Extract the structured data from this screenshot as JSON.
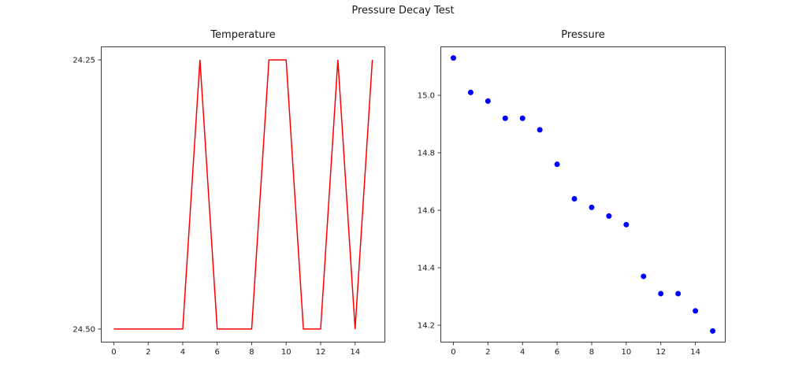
{
  "figure": {
    "title": "Pressure Decay Test",
    "background": "#ffffff",
    "text_color": "#1a1a1a",
    "axis_color": "#3c3c3c"
  },
  "chart_data": [
    {
      "type": "line",
      "title": "Temperature",
      "line_color": "#ff0000",
      "x": [
        0,
        1,
        2,
        3,
        4,
        5,
        6,
        7,
        8,
        9,
        10,
        11,
        12,
        13,
        14,
        15
      ],
      "y": [
        "24.50",
        "24.50",
        "24.50",
        "24.50",
        "24.50",
        "24.25",
        "24.50",
        "24.50",
        "24.50",
        "24.25",
        "24.25",
        "24.50",
        "24.50",
        "24.25",
        "24.50",
        "24.25"
      ],
      "y_categorical": true,
      "y_categories_bottom_to_top": [
        "24.50",
        "24.25"
      ],
      "xlim": [
        -0.75,
        15.75
      ],
      "ylim": [
        -0.05,
        1.05
      ],
      "xticks": [
        0,
        2,
        4,
        6,
        8,
        10,
        12,
        14
      ],
      "yticks": [
        {
          "pos": 1,
          "label": "24.25"
        },
        {
          "pos": 0,
          "label": "24.50"
        }
      ],
      "xlabel": "",
      "ylabel": "",
      "grid": false,
      "legend": null
    },
    {
      "type": "scatter",
      "title": "Pressure",
      "marker_color": "#0000ff",
      "x": [
        0,
        1,
        2,
        3,
        4,
        5,
        6,
        7,
        8,
        9,
        10,
        11,
        12,
        13,
        14,
        15
      ],
      "y": [
        15.13,
        15.01,
        14.98,
        14.92,
        14.92,
        14.88,
        14.76,
        14.64,
        14.61,
        14.58,
        14.55,
        14.37,
        14.31,
        14.31,
        14.25,
        14.18
      ],
      "y_categorical": false,
      "xlim": [
        -0.75,
        15.75
      ],
      "ylim": [
        14.14,
        15.17
      ],
      "xticks": [
        0,
        2,
        4,
        6,
        8,
        10,
        12,
        14
      ],
      "yticks": [
        {
          "pos": 15.0,
          "label": "15.0"
        },
        {
          "pos": 14.8,
          "label": "14.8"
        },
        {
          "pos": 14.6,
          "label": "14.6"
        },
        {
          "pos": 14.4,
          "label": "14.4"
        },
        {
          "pos": 14.2,
          "label": "14.2"
        }
      ],
      "xlabel": "",
      "ylabel": "",
      "grid": false,
      "legend": null
    }
  ]
}
